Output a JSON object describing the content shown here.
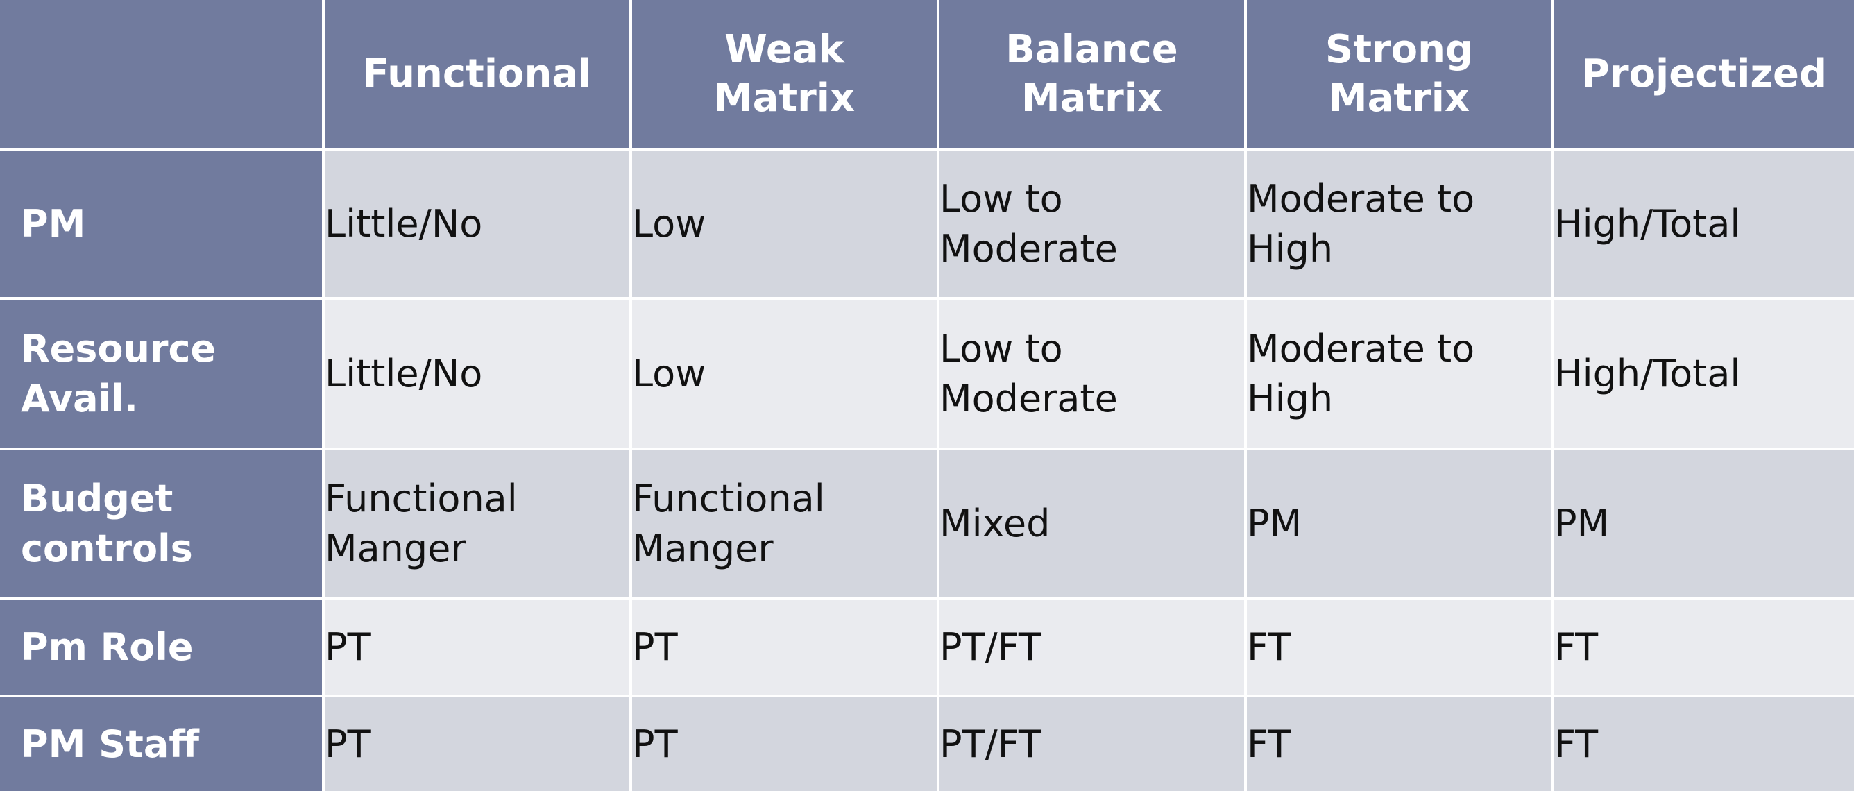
{
  "table": {
    "columns": [
      "",
      "Functional",
      "Weak Matrix",
      "Balance Matrix",
      "Strong Matrix",
      "Projectized"
    ],
    "column_lines": [
      [],
      [
        "Functional"
      ],
      [
        "Weak",
        "Matrix"
      ],
      [
        "Balance",
        "Matrix"
      ],
      [
        "Strong",
        "Matrix"
      ],
      [
        "Projectized"
      ]
    ],
    "rows": [
      {
        "header": [
          "PM"
        ],
        "cells": [
          [
            "Little/No"
          ],
          [
            "Low"
          ],
          [
            "Low to",
            "Moderate"
          ],
          [
            "Moderate to",
            "High"
          ],
          [
            "High/Total"
          ]
        ]
      },
      {
        "header": [
          "Resource",
          "Avail."
        ],
        "cells": [
          [
            "Little/No"
          ],
          [
            "Low"
          ],
          [
            "Low to",
            "Moderate"
          ],
          [
            "Moderate to",
            "High"
          ],
          [
            "High/Total"
          ]
        ]
      },
      {
        "header": [
          "Budget",
          "controls"
        ],
        "cells": [
          [
            "Functional",
            "Manger"
          ],
          [
            "Functional",
            "Manger"
          ],
          [
            "Mixed"
          ],
          [
            "PM"
          ],
          [
            "PM"
          ]
        ]
      },
      {
        "header": [
          "Pm Role"
        ],
        "cells": [
          [
            "PT"
          ],
          [
            "PT"
          ],
          [
            "PT/FT"
          ],
          [
            "FT"
          ],
          [
            "FT"
          ]
        ]
      },
      {
        "header": [
          "PM Staff"
        ],
        "cells": [
          [
            "PT"
          ],
          [
            "PT"
          ],
          [
            "PT/FT"
          ],
          [
            "FT"
          ],
          [
            "FT"
          ]
        ]
      }
    ]
  },
  "colors": {
    "header_bg": "#717b9e",
    "row_dark": "#d3d6de",
    "row_light": "#eaebef",
    "text_dark": "#111111",
    "text_light": "#ffffff"
  }
}
